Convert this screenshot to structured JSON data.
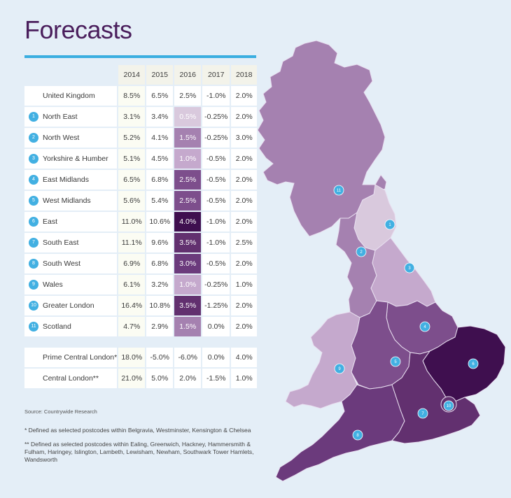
{
  "title": "Forecasts",
  "chart_data": {
    "type": "table",
    "columns": [
      "2014",
      "2015",
      "2016",
      "2017",
      "2018"
    ],
    "rows": [
      {
        "num": "",
        "region": "United Kingdom",
        "values": [
          "8.5%",
          "6.5%",
          "2.5%",
          "-1.0%",
          "2.0%"
        ]
      },
      {
        "num": "1",
        "region": "North East",
        "values": [
          "3.1%",
          "3.4%",
          "0.5%",
          "-0.25%",
          "2.0%"
        ]
      },
      {
        "num": "2",
        "region": "North West",
        "values": [
          "5.2%",
          "4.1%",
          "1.5%",
          "-0.25%",
          "3.0%"
        ]
      },
      {
        "num": "3",
        "region": "Yorkshire & Humber",
        "values": [
          "5.1%",
          "4.5%",
          "1.0%",
          "-0.5%",
          "2.0%"
        ]
      },
      {
        "num": "4",
        "region": "East Midlands",
        "values": [
          "6.5%",
          "6.8%",
          "2.5%",
          "-0.5%",
          "2.0%"
        ]
      },
      {
        "num": "5",
        "region": "West Midlands",
        "values": [
          "5.6%",
          "5.4%",
          "2.5%",
          "-0.5%",
          "2.0%"
        ]
      },
      {
        "num": "6",
        "region": "East",
        "values": [
          "11.0%",
          "10.6%",
          "4.0%",
          "-1.0%",
          "2.0%"
        ]
      },
      {
        "num": "7",
        "region": "South East",
        "values": [
          "11.1%",
          "9.6%",
          "3.5%",
          "-1.0%",
          "2.5%"
        ]
      },
      {
        "num": "8",
        "region": "South West",
        "values": [
          "6.9%",
          "6.8%",
          "3.0%",
          "-0.5%",
          "2.0%"
        ]
      },
      {
        "num": "9",
        "region": "Wales",
        "values": [
          "6.1%",
          "3.2%",
          "1.0%",
          "-0.25%",
          "1.0%"
        ]
      },
      {
        "num": "10",
        "region": "Greater London",
        "values": [
          "16.4%",
          "10.8%",
          "3.5%",
          "-1.25%",
          "2.0%"
        ]
      },
      {
        "num": "11",
        "region": "Scotland",
        "values": [
          "4.7%",
          "2.9%",
          "1.5%",
          "0.0%",
          "2.0%"
        ]
      }
    ],
    "extra_rows": [
      {
        "region": "Prime Central London*",
        "values": [
          "18.0%",
          "-5.0%",
          "-6.0%",
          "0.0%",
          "4.0%"
        ]
      },
      {
        "region": "Central London**",
        "values": [
          "21.0%",
          "5.0%",
          "2.0%",
          "-1.5%",
          "1.0%"
        ]
      }
    ],
    "highlight_column": "2016",
    "color_scale": {
      "0.5": "#d9c9dd",
      "1.0": "#c5a9cd",
      "1.5": "#a581b0",
      "2.5": "#7d4e8c",
      "3.0": "#6b3a7c",
      "3.5": "#62306f",
      "4.0": "#3f0f4f"
    }
  },
  "map": {
    "regions": [
      {
        "num": "11",
        "value": 1.5
      },
      {
        "num": "1",
        "value": 0.5
      },
      {
        "num": "2",
        "value": 1.5
      },
      {
        "num": "3",
        "value": 1.0
      },
      {
        "num": "4",
        "value": 2.5
      },
      {
        "num": "5",
        "value": 2.5
      },
      {
        "num": "6",
        "value": 4.0
      },
      {
        "num": "7",
        "value": 3.5
      },
      {
        "num": "8",
        "value": 3.0
      },
      {
        "num": "9",
        "value": 1.0
      },
      {
        "num": "10",
        "value": 3.5
      }
    ],
    "marker_color": "#42b0e2"
  },
  "source": "Source: Countrywide Research",
  "note1": "* Defined as selected postcodes within Belgravia, Westminster, Kensington & Chelsea",
  "note2": "** Defined as selected postcodes within Ealing, Greenwich, Hackney, Hammersmith & Fulham, Haringey, Islington, Lambeth, Lewisham, Newham, Southwark Tower Hamlets, Wandsworth"
}
